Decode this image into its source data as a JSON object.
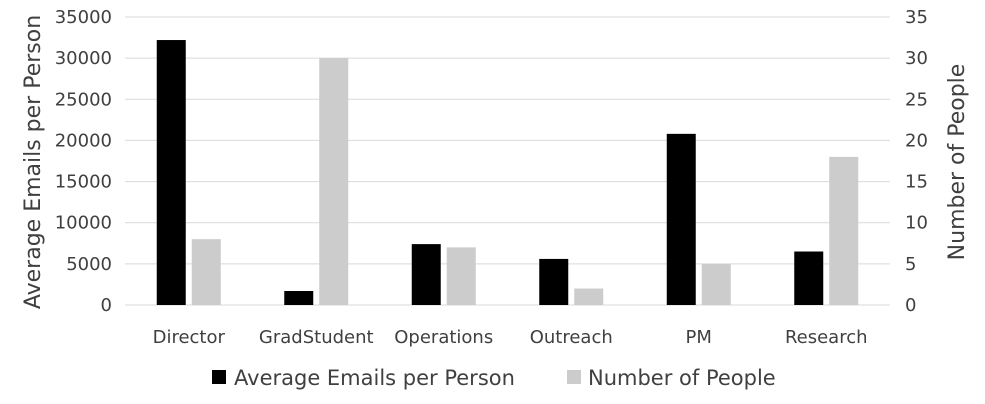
{
  "chart_data": {
    "type": "bar",
    "title": "",
    "categories": [
      "Director",
      "GradStudent",
      "Operations",
      "Outreach",
      "PM",
      "Research"
    ],
    "series": [
      {
        "name": "Average Emails per Person",
        "axis": "left",
        "color": "#000000",
        "values": [
          32200,
          1700,
          7400,
          5600,
          20800,
          6500
        ]
      },
      {
        "name": "Number of People",
        "axis": "right",
        "color": "#cccccc",
        "values": [
          8,
          30,
          7,
          2,
          5,
          18
        ]
      }
    ],
    "ylabel": "Average Emails per Person",
    "y2label": "Number of People",
    "ylim": [
      0,
      35000
    ],
    "y2lim": [
      0,
      35
    ],
    "yticks": [
      "0",
      "5000",
      "10000",
      "15000",
      "20000",
      "25000",
      "30000",
      "35000"
    ],
    "y2ticks": [
      "0",
      "5",
      "10",
      "15",
      "20",
      "25",
      "30",
      "35"
    ],
    "grid": true,
    "legend": "bottom-center"
  }
}
